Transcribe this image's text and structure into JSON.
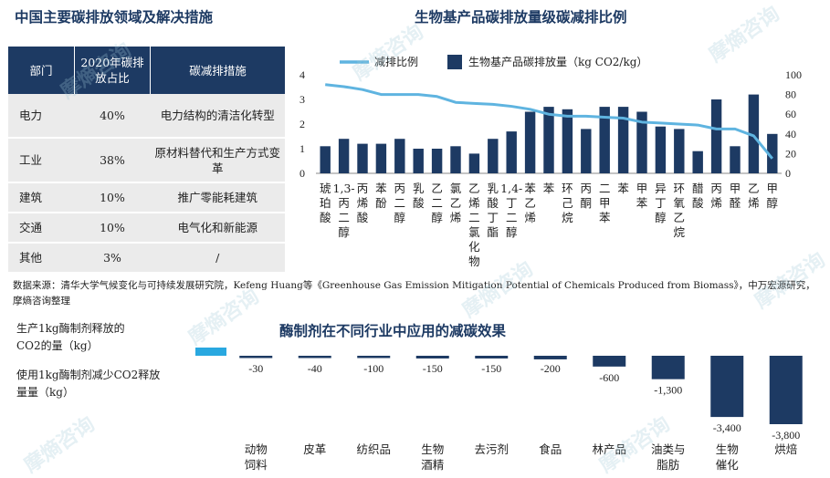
{
  "titles": {
    "left": "中国主要碳排放领域及解决措施",
    "right": "生物基产品碳排放量级碳减排比例",
    "bottom": "酶制剂在不同行业中应用的减碳效果"
  },
  "table": {
    "headers": [
      "部门",
      "2020年碳排放占比",
      "碳减排措施"
    ],
    "rows": [
      {
        "sector": "电力",
        "share": "40%",
        "measure": "电力结构的清洁化转型"
      },
      {
        "sector": "工业",
        "share": "38%",
        "measure": "原材料替代和生产方式变革"
      },
      {
        "sector": "建筑",
        "share": "10%",
        "measure": "推广零能耗建筑"
      },
      {
        "sector": "交通",
        "share": "10%",
        "measure": "电气化和新能源"
      },
      {
        "sector": "其他",
        "share": "3%",
        "measure": "/"
      }
    ]
  },
  "source_note": "数据来源：清华大学气候变化与可持续发展研究院，Kefeng Huang等《Greenhouse Gas Emission Mitigation Potential of Chemicals Produced from Biomass》，中万宏源研究，摩熵咨询整理",
  "watermark": "摩熵咨询",
  "chart_data": [
    {
      "type": "bar",
      "title": "生物基产品碳排放量级碳减排比例",
      "categories": [
        "琥珀酸",
        "1,3-丙二醇",
        "丙烯酸",
        "苯酚",
        "丙二醇",
        "乳酸",
        "乙二醇",
        "氯乙烯",
        "乙烯二氯化物",
        "乳酸丁酯",
        "1,4-丁二醇",
        "苯乙烯",
        "苯",
        "环己烷",
        "丙酮",
        "二甲苯",
        "苯",
        "甲苯",
        "异丁醇",
        "环氧乙烷",
        "醋酸",
        "丙烯",
        "甲醛",
        "乙烯",
        "甲醇"
      ],
      "series": [
        {
          "name": "生物基产品碳排放量（kg CO2/kg）",
          "kind": "bar",
          "axis": "left",
          "color": "#1d3a63",
          "values": [
            1.1,
            1.4,
            1.2,
            1.2,
            1.4,
            1.0,
            1.0,
            1.1,
            0.8,
            1.4,
            1.7,
            2.5,
            2.7,
            2.6,
            1.8,
            2.7,
            2.7,
            2.5,
            1.9,
            1.8,
            0.9,
            3.0,
            1.1,
            3.2,
            1.6
          ]
        },
        {
          "name": "减排比例",
          "kind": "line",
          "axis": "right",
          "color": "#5fb4e0",
          "values": [
            90,
            88,
            85,
            80,
            80,
            80,
            78,
            72,
            71,
            70,
            68,
            65,
            60,
            58,
            58,
            57,
            56,
            52,
            51,
            50,
            49,
            45,
            45,
            38,
            15
          ]
        }
      ],
      "ylim_left": [
        0,
        4
      ],
      "yticks_left": [
        0,
        1,
        2,
        3,
        4
      ],
      "ylim_right": [
        0,
        100
      ],
      "yticks_right": [
        0,
        20,
        40,
        60,
        80,
        100
      ],
      "legend_position": "top"
    },
    {
      "type": "bar",
      "title": "酶制剂在不同行业中应用的减碳效果",
      "row_labels": [
        "生产1kg酶制剂释放的CO2的量（kg）",
        "使用1kg酶制剂减少CO2释放量量（kg）"
      ],
      "categories": [
        "动物饲料",
        "皮革",
        "纺织品",
        "生物酒精",
        "去污剂",
        "食品",
        "林产品",
        "油类与脂肪",
        "生物催化",
        "烘焙"
      ],
      "series": [
        {
          "name": "使用1kg酶制剂减少CO2释放量（kg）",
          "color": "#1d3a63",
          "values": [
            -30,
            -40,
            -100,
            -150,
            -150,
            -200,
            -600,
            -1300,
            -3400,
            -3800
          ],
          "labels": [
            "-30",
            "-40",
            "-100",
            "-150",
            "-150",
            "-200",
            "-600",
            "-1,300",
            "-3,400",
            "-3,800"
          ]
        }
      ],
      "production_bar": {
        "color": "#29a8e0"
      },
      "ylim": [
        -3800,
        0
      ]
    }
  ]
}
